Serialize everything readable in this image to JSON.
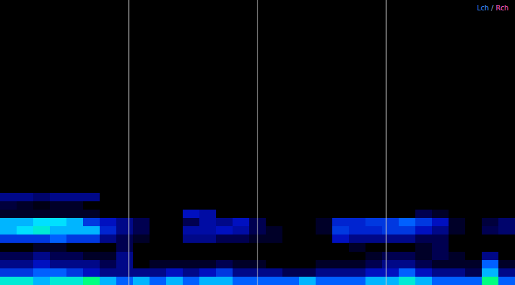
{
  "chart_data": {
    "type": "heatmap",
    "tick_labels": false,
    "grid": false,
    "xlim": [
      0,
      4
    ],
    "ylim": [
      0,
      1
    ],
    "zlim": [
      0,
      1
    ],
    "dividers": [
      1,
      2,
      3
    ],
    "series": [
      {
        "name": "Lch",
        "color": "#3a8dff"
      },
      {
        "name": "Rch",
        "color": "#ff5fd0"
      }
    ],
    "separator": " / ",
    "cells": [
      [
        0.8,
        0.8,
        0.7,
        0.8,
        0.8,
        0.9,
        0.7,
        0.6,
        0.7,
        0.6,
        0.7,
        0.6,
        0.7,
        0.7,
        0.6,
        0.6,
        0.6,
        0.6,
        0.7,
        0.6,
        0.6,
        0.6,
        0.7,
        0.7,
        0.8,
        0.7,
        0.6,
        0.6,
        0.6,
        0.9,
        0.6
      ],
      [
        0.5,
        0.5,
        0.6,
        0.6,
        0.5,
        0.4,
        0.3,
        0.3,
        0.3,
        0.3,
        0.4,
        0.3,
        0.4,
        0.5,
        0.3,
        0.3,
        0.3,
        0.2,
        0.2,
        0.3,
        0.3,
        0.3,
        0.4,
        0.4,
        0.6,
        0.4,
        0.3,
        0.3,
        0.2,
        0.7,
        0.3
      ],
      [
        0.3,
        0.3,
        0.4,
        0.3,
        0.3,
        0.3,
        0.2,
        0.3,
        0,
        0.1,
        0.1,
        0.1,
        0.1,
        0.2,
        0.1,
        0.1,
        0,
        0,
        0,
        0.1,
        0.1,
        0.1,
        0.2,
        0.3,
        0.3,
        0.2,
        0.1,
        0.1,
        0.1,
        0.6,
        0.1
      ],
      [
        0.2,
        0.2,
        0.3,
        0.2,
        0.2,
        0.1,
        0.1,
        0.3,
        0,
        0,
        0,
        0,
        0,
        0,
        0,
        0,
        0,
        0,
        0,
        0,
        0,
        0,
        0.1,
        0.2,
        0.2,
        0.1,
        0.2,
        0.1,
        0,
        0.3,
        0
      ],
      [
        0,
        0,
        0.1,
        0.1,
        0,
        0,
        0,
        0.2,
        0,
        0,
        0,
        0,
        0,
        0,
        0,
        0,
        0,
        0,
        0,
        0,
        0,
        0.1,
        0,
        0,
        0,
        0.1,
        0.2,
        0,
        0,
        0,
        0
      ],
      [
        0.5,
        0.5,
        0.5,
        0.6,
        0.5,
        0.5,
        0.3,
        0.2,
        0.1,
        0,
        0,
        0.3,
        0.3,
        0.2,
        0.2,
        0.1,
        0.1,
        0,
        0,
        0,
        0.4,
        0.3,
        0.3,
        0.3,
        0.3,
        0.2,
        0.2,
        0,
        0,
        0,
        0
      ],
      [
        0.7,
        0.75,
        0.8,
        0.7,
        0.7,
        0.7,
        0.45,
        0.3,
        0.2,
        0,
        0,
        0.35,
        0.35,
        0.4,
        0.35,
        0.2,
        0.1,
        0,
        0,
        0.1,
        0.5,
        0.45,
        0.45,
        0.5,
        0.5,
        0.4,
        0.3,
        0.1,
        0,
        0.2,
        0.25
      ],
      [
        0.7,
        0.7,
        0.75,
        0.75,
        0.7,
        0.5,
        0.4,
        0.3,
        0.2,
        0,
        0,
        0.2,
        0.35,
        0.3,
        0.4,
        0.2,
        0,
        0,
        0,
        0.1,
        0.45,
        0.45,
        0.5,
        0.5,
        0.6,
        0.5,
        0.4,
        0.1,
        0,
        0.15,
        0.25
      ],
      [
        0.1,
        0.1,
        0.1,
        0.1,
        0.1,
        0.1,
        0,
        0,
        0,
        0,
        0,
        0.4,
        0.35,
        0,
        0,
        0,
        0,
        0,
        0,
        0,
        0,
        0,
        0,
        0,
        0,
        0.2,
        0.1,
        0,
        0,
        0,
        0
      ],
      [
        0.15,
        0.1,
        0.05,
        0.1,
        0.1,
        0,
        0,
        0,
        0,
        0,
        0,
        0,
        0,
        0,
        0,
        0,
        0,
        0,
        0,
        0,
        0,
        0,
        0,
        0,
        0,
        0,
        0,
        0,
        0,
        0,
        0
      ],
      [
        0.3,
        0.3,
        0.25,
        0.3,
        0.3,
        0.3,
        0,
        0,
        0,
        0,
        0,
        0,
        0,
        0,
        0,
        0,
        0,
        0,
        0,
        0,
        0,
        0,
        0,
        0,
        0,
        0,
        0,
        0,
        0,
        0,
        0
      ],
      [
        0,
        0,
        0,
        0,
        0,
        0,
        0,
        0,
        0,
        0,
        0,
        0,
        0,
        0,
        0,
        0,
        0,
        0,
        0,
        0,
        0,
        0,
        0,
        0,
        0,
        0,
        0,
        0,
        0,
        0,
        0
      ],
      [
        0,
        0,
        0,
        0,
        0,
        0,
        0,
        0,
        0,
        0,
        0,
        0,
        0,
        0,
        0,
        0,
        0,
        0,
        0,
        0,
        0,
        0,
        0,
        0,
        0,
        0,
        0,
        0,
        0,
        0,
        0
      ],
      [
        0,
        0,
        0,
        0,
        0,
        0,
        0,
        0,
        0,
        0,
        0,
        0,
        0,
        0,
        0,
        0,
        0,
        0,
        0,
        0,
        0,
        0,
        0,
        0,
        0,
        0,
        0,
        0,
        0,
        0,
        0
      ],
      [
        0,
        0,
        0,
        0,
        0,
        0,
        0,
        0,
        0,
        0,
        0,
        0,
        0,
        0,
        0,
        0,
        0,
        0,
        0,
        0,
        0,
        0,
        0,
        0,
        0,
        0,
        0,
        0,
        0,
        0,
        0
      ],
      [
        0,
        0,
        0,
        0,
        0,
        0,
        0,
        0,
        0,
        0,
        0,
        0,
        0,
        0,
        0,
        0,
        0,
        0,
        0,
        0,
        0,
        0,
        0,
        0,
        0,
        0,
        0,
        0,
        0,
        0,
        0
      ],
      [
        0,
        0,
        0,
        0,
        0,
        0,
        0,
        0,
        0,
        0,
        0,
        0,
        0,
        0,
        0,
        0,
        0,
        0,
        0,
        0,
        0,
        0,
        0,
        0,
        0,
        0,
        0,
        0,
        0,
        0,
        0
      ],
      [
        0,
        0,
        0,
        0,
        0,
        0,
        0,
        0,
        0,
        0,
        0,
        0,
        0,
        0,
        0,
        0,
        0,
        0,
        0,
        0,
        0,
        0,
        0,
        0,
        0,
        0,
        0,
        0,
        0,
        0,
        0
      ],
      [
        0,
        0,
        0,
        0,
        0,
        0,
        0,
        0,
        0,
        0,
        0,
        0,
        0,
        0,
        0,
        0,
        0,
        0,
        0,
        0,
        0,
        0,
        0,
        0,
        0,
        0,
        0,
        0,
        0,
        0,
        0
      ],
      [
        0,
        0,
        0,
        0,
        0,
        0,
        0,
        0,
        0,
        0,
        0,
        0,
        0,
        0,
        0,
        0,
        0,
        0,
        0,
        0,
        0,
        0,
        0,
        0,
        0,
        0,
        0,
        0,
        0,
        0,
        0
      ],
      [
        0,
        0,
        0,
        0,
        0,
        0,
        0,
        0,
        0,
        0,
        0,
        0,
        0,
        0,
        0,
        0,
        0,
        0,
        0,
        0,
        0,
        0,
        0,
        0,
        0,
        0,
        0,
        0,
        0,
        0,
        0
      ],
      [
        0,
        0,
        0,
        0,
        0,
        0,
        0,
        0,
        0,
        0,
        0,
        0,
        0,
        0,
        0,
        0,
        0,
        0,
        0,
        0,
        0,
        0,
        0,
        0,
        0,
        0,
        0,
        0,
        0,
        0,
        0
      ],
      [
        0,
        0,
        0,
        0,
        0,
        0,
        0,
        0,
        0,
        0,
        0,
        0,
        0,
        0,
        0,
        0,
        0,
        0,
        0,
        0,
        0,
        0,
        0,
        0,
        0,
        0,
        0,
        0,
        0,
        0,
        0
      ],
      [
        0,
        0,
        0,
        0,
        0,
        0,
        0,
        0,
        0,
        0,
        0,
        0,
        0,
        0,
        0,
        0,
        0,
        0,
        0,
        0,
        0,
        0,
        0,
        0,
        0,
        0,
        0,
        0,
        0,
        0,
        0
      ],
      [
        0,
        0,
        0,
        0,
        0,
        0,
        0,
        0,
        0,
        0,
        0,
        0,
        0,
        0,
        0,
        0,
        0,
        0,
        0,
        0,
        0,
        0,
        0,
        0,
        0,
        0,
        0,
        0,
        0,
        0,
        0
      ],
      [
        0,
        0,
        0,
        0,
        0,
        0,
        0,
        0,
        0,
        0,
        0,
        0,
        0,
        0,
        0,
        0,
        0,
        0,
        0,
        0,
        0,
        0,
        0,
        0,
        0,
        0,
        0,
        0,
        0,
        0,
        0
      ],
      [
        0,
        0,
        0,
        0,
        0,
        0,
        0,
        0,
        0,
        0,
        0,
        0,
        0,
        0,
        0,
        0,
        0,
        0,
        0,
        0,
        0,
        0,
        0,
        0,
        0,
        0,
        0,
        0,
        0,
        0,
        0
      ],
      [
        0,
        0,
        0,
        0,
        0,
        0,
        0,
        0,
        0,
        0,
        0,
        0,
        0,
        0,
        0,
        0,
        0,
        0,
        0,
        0,
        0,
        0,
        0,
        0,
        0,
        0,
        0,
        0,
        0,
        0,
        0
      ],
      [
        0,
        0,
        0,
        0,
        0,
        0,
        0,
        0,
        0,
        0,
        0,
        0,
        0,
        0,
        0,
        0,
        0,
        0,
        0,
        0,
        0,
        0,
        0,
        0,
        0,
        0,
        0,
        0,
        0,
        0,
        0
      ],
      [
        0,
        0,
        0,
        0,
        0,
        0,
        0,
        0,
        0,
        0,
        0,
        0,
        0,
        0,
        0,
        0,
        0,
        0,
        0,
        0,
        0,
        0,
        0,
        0,
        0,
        0,
        0,
        0,
        0,
        0,
        0
      ],
      [
        0,
        0,
        0,
        0,
        0,
        0,
        0,
        0,
        0,
        0,
        0,
        0,
        0,
        0,
        0,
        0,
        0,
        0,
        0,
        0,
        0,
        0,
        0,
        0,
        0,
        0,
        0,
        0,
        0,
        0,
        0
      ],
      [
        0,
        0,
        0,
        0,
        0,
        0,
        0,
        0,
        0,
        0,
        0,
        0,
        0,
        0,
        0,
        0,
        0,
        0,
        0,
        0,
        0,
        0,
        0,
        0,
        0,
        0,
        0,
        0,
        0,
        0,
        0
      ],
      [
        0,
        0,
        0,
        0,
        0,
        0,
        0,
        0,
        0,
        0,
        0,
        0,
        0,
        0,
        0,
        0,
        0,
        0,
        0,
        0,
        0,
        0,
        0,
        0,
        0,
        0,
        0,
        0,
        0,
        0,
        0
      ],
      [
        0,
        0,
        0,
        0,
        0,
        0,
        0,
        0,
        0,
        0,
        0,
        0,
        0,
        0,
        0,
        0,
        0,
        0,
        0,
        0,
        0,
        0,
        0,
        0,
        0,
        0,
        0,
        0,
        0,
        0,
        0
      ]
    ]
  }
}
